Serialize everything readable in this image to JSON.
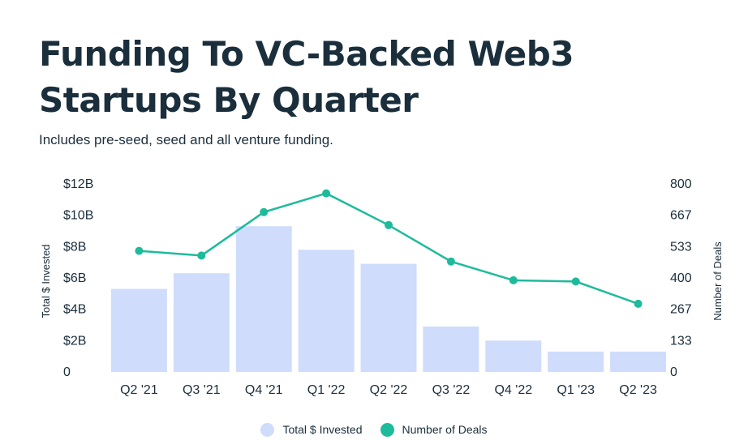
{
  "chart_data": {
    "type": "bar",
    "title": "Funding To VC-Backed Web3 Startups By Quarter",
    "subtitle": "Includes pre-seed, seed and all venture funding.",
    "categories": [
      "Q2 '21",
      "Q3 '21",
      "Q4 '21",
      "Q1 '22",
      "Q2 '22",
      "Q3 '22",
      "Q4 '22",
      "Q1 '23",
      "Q2 '23"
    ],
    "series": [
      {
        "name": "Total $ Invested",
        "type": "bar",
        "axis": "left",
        "color": "#cfdcfb",
        "values": [
          5.3,
          6.3,
          9.3,
          7.8,
          6.9,
          2.9,
          2.0,
          1.3,
          1.3
        ]
      },
      {
        "name": "Number of Deals",
        "type": "line",
        "axis": "right",
        "color": "#1dbb9b",
        "values": [
          515,
          495,
          680,
          760,
          625,
          470,
          390,
          385,
          290
        ]
      }
    ],
    "y_left": {
      "label": "Total $ Invested",
      "ylim": [
        0,
        12
      ],
      "ticks": [
        0,
        2,
        4,
        6,
        8,
        10,
        12
      ],
      "tick_labels": [
        "0",
        "$2B",
        "$4B",
        "$6B",
        "$8B",
        "$10B",
        "$12B"
      ]
    },
    "y_right": {
      "label": "Number of Deals",
      "ylim": [
        0,
        800
      ],
      "ticks": [
        0,
        133,
        267,
        400,
        533,
        667,
        800
      ],
      "tick_labels": [
        "0",
        "133",
        "267",
        "400",
        "533",
        "667",
        "800"
      ]
    },
    "legend_position": "bottom",
    "grid": false
  }
}
